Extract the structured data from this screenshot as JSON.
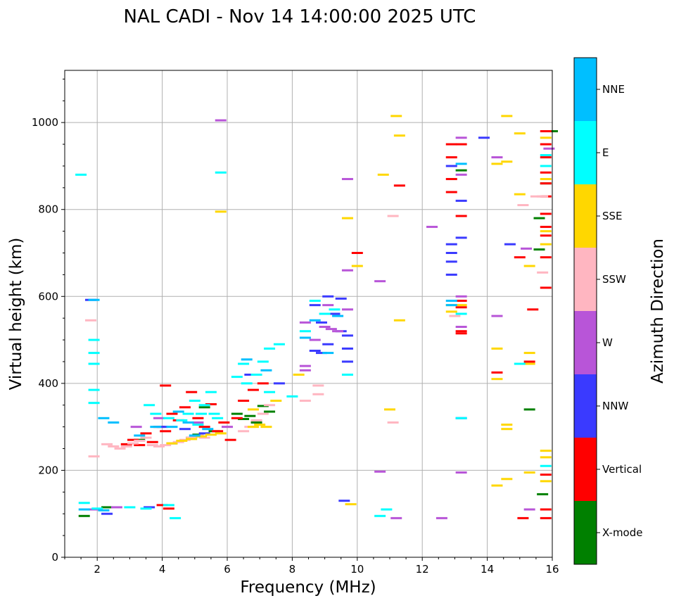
{
  "chart_data": {
    "type": "scatter",
    "title": "NAL CADI - Nov 14 14:00:00 2025 UTC",
    "xlabel": "Frequency (MHz)",
    "ylabel": "Virtual height (km)",
    "xlim": [
      1,
      16
    ],
    "ylim": [
      0,
      1120
    ],
    "x_ticks": [
      2,
      4,
      6,
      8,
      10,
      12,
      14,
      16
    ],
    "x_tick_labels": [
      "2",
      "4",
      "6",
      "8",
      "10",
      "12",
      "14",
      "16"
    ],
    "y_ticks": [
      0,
      200,
      400,
      600,
      800,
      1000
    ],
    "y_tick_labels": [
      "0",
      "200",
      "400",
      "600",
      "800",
      "1000"
    ],
    "grid": true,
    "colorbar": {
      "label": "Azimuth Direction",
      "categories": [
        "X-mode",
        "Vertical",
        "NNW",
        "W",
        "SSW",
        "SSE",
        "E",
        "NNE"
      ],
      "colors": [
        "#008000",
        "#ff0000",
        "#3a3aff",
        "#b855d8",
        "#ffb6c1",
        "#ffd700",
        "#00ffff",
        "#00bfff"
      ]
    },
    "series": [
      {
        "name": "X-mode",
        "points": [
          [
            1.6,
            95
          ],
          [
            2.3,
            115
          ],
          [
            5.1,
            282
          ],
          [
            5.6,
            290
          ],
          [
            6.5,
            318
          ],
          [
            6.7,
            325
          ],
          [
            6.9,
            310
          ],
          [
            7.1,
            348
          ],
          [
            7.3,
            335
          ],
          [
            4.3,
            262
          ],
          [
            4.9,
            275
          ],
          [
            3.3,
            270
          ],
          [
            15.6,
            708
          ],
          [
            15.3,
            340
          ],
          [
            15.7,
            145
          ],
          [
            16.0,
            980
          ],
          [
            15.8,
            860
          ],
          [
            15.6,
            780
          ],
          [
            13.2,
            890
          ],
          [
            5.3,
            345
          ],
          [
            6.3,
            330
          ]
        ]
      },
      {
        "name": "Vertical",
        "points": [
          [
            2.9,
            260
          ],
          [
            3.1,
            270
          ],
          [
            3.3,
            258
          ],
          [
            3.5,
            285
          ],
          [
            3.7,
            265
          ],
          [
            3.9,
            300
          ],
          [
            4.1,
            290
          ],
          [
            4.1,
            395
          ],
          [
            4.3,
            330
          ],
          [
            4.5,
            315
          ],
          [
            4.7,
            345
          ],
          [
            4.9,
            380
          ],
          [
            5.1,
            320
          ],
          [
            5.3,
            300
          ],
          [
            5.5,
            352
          ],
          [
            5.7,
            290
          ],
          [
            5.9,
            310
          ],
          [
            6.1,
            270
          ],
          [
            6.3,
            320
          ],
          [
            6.5,
            360
          ],
          [
            6.8,
            385
          ],
          [
            7.1,
            400
          ],
          [
            4.0,
            120
          ],
          [
            4.2,
            112
          ],
          [
            12.9,
            950
          ],
          [
            12.9,
            920
          ],
          [
            12.9,
            870
          ],
          [
            12.9,
            840
          ],
          [
            13.2,
            950
          ],
          [
            13.2,
            785
          ],
          [
            13.2,
            590
          ],
          [
            13.2,
            575
          ],
          [
            13.2,
            520
          ],
          [
            13.2,
            515
          ],
          [
            11.3,
            855
          ],
          [
            10.0,
            700
          ],
          [
            15.0,
            690
          ],
          [
            15.4,
            570
          ],
          [
            15.3,
            450
          ],
          [
            15.8,
            980
          ],
          [
            15.8,
            950
          ],
          [
            15.8,
            920
          ],
          [
            15.8,
            885
          ],
          [
            15.8,
            860
          ],
          [
            15.8,
            830
          ],
          [
            15.8,
            790
          ],
          [
            15.8,
            760
          ],
          [
            15.8,
            740
          ],
          [
            15.8,
            690
          ],
          [
            15.8,
            620
          ],
          [
            15.8,
            190
          ],
          [
            15.8,
            110
          ],
          [
            15.8,
            90
          ],
          [
            15.1,
            90
          ],
          [
            14.3,
            425
          ]
        ]
      },
      {
        "name": "NNW",
        "points": [
          [
            1.8,
            592
          ],
          [
            2.3,
            100
          ],
          [
            3.6,
            115
          ],
          [
            4.0,
            300
          ],
          [
            4.7,
            295
          ],
          [
            5.3,
            285
          ],
          [
            6.7,
            420
          ],
          [
            7.6,
            400
          ],
          [
            8.7,
            475
          ],
          [
            8.7,
            580
          ],
          [
            8.9,
            540
          ],
          [
            8.9,
            470
          ],
          [
            9.1,
            600
          ],
          [
            9.1,
            490
          ],
          [
            9.3,
            560
          ],
          [
            9.5,
            595
          ],
          [
            9.5,
            520
          ],
          [
            9.7,
            480
          ],
          [
            9.7,
            510
          ],
          [
            9.6,
            130
          ],
          [
            12.9,
            720
          ],
          [
            12.9,
            700
          ],
          [
            12.9,
            680
          ],
          [
            12.9,
            650
          ],
          [
            12.9,
            900
          ],
          [
            13.2,
            735
          ],
          [
            13.2,
            320
          ],
          [
            13.9,
            965
          ],
          [
            14.7,
            720
          ],
          [
            13.2,
            820
          ],
          [
            9.7,
            450
          ]
        ]
      },
      {
        "name": "W",
        "points": [
          [
            1.9,
            110
          ],
          [
            2.6,
            115
          ],
          [
            3.2,
            300
          ],
          [
            3.9,
            320
          ],
          [
            5.1,
            310
          ],
          [
            6.0,
            300
          ],
          [
            8.4,
            540
          ],
          [
            8.4,
            440
          ],
          [
            8.4,
            430
          ],
          [
            8.7,
            500
          ],
          [
            9.0,
            530
          ],
          [
            9.1,
            580
          ],
          [
            9.2,
            525
          ],
          [
            9.4,
            520
          ],
          [
            9.7,
            660
          ],
          [
            9.7,
            570
          ],
          [
            10.7,
            635
          ],
          [
            11.2,
            90
          ],
          [
            12.3,
            760
          ],
          [
            12.6,
            90
          ],
          [
            13.2,
            965
          ],
          [
            13.2,
            600
          ],
          [
            13.2,
            530
          ],
          [
            13.2,
            195
          ],
          [
            13.2,
            880
          ],
          [
            14.3,
            920
          ],
          [
            14.3,
            555
          ],
          [
            15.2,
            710
          ],
          [
            15.3,
            110
          ],
          [
            15.9,
            940
          ],
          [
            9.7,
            870
          ],
          [
            10.7,
            197
          ],
          [
            5.8,
            1005
          ]
        ]
      },
      {
        "name": "SSW",
        "points": [
          [
            2.3,
            260
          ],
          [
            2.5,
            255
          ],
          [
            2.7,
            250
          ],
          [
            2.9,
            255
          ],
          [
            3.1,
            262
          ],
          [
            3.3,
            268
          ],
          [
            3.5,
            275
          ],
          [
            3.7,
            258
          ],
          [
            3.9,
            255
          ],
          [
            4.1,
            258
          ],
          [
            4.3,
            262
          ],
          [
            4.5,
            265
          ],
          [
            4.7,
            270
          ],
          [
            4.9,
            275
          ],
          [
            5.1,
            280
          ],
          [
            5.3,
            275
          ],
          [
            6.5,
            290
          ],
          [
            6.7,
            300
          ],
          [
            6.9,
            315
          ],
          [
            7.1,
            330
          ],
          [
            7.3,
            350
          ],
          [
            8.4,
            360
          ],
          [
            8.8,
            395
          ],
          [
            8.8,
            375
          ],
          [
            11.1,
            785
          ],
          [
            11.1,
            310
          ],
          [
            15.1,
            810
          ],
          [
            15.5,
            830
          ],
          [
            15.7,
            655
          ],
          [
            15.7,
            830
          ],
          [
            13.0,
            555
          ],
          [
            1.8,
            545
          ],
          [
            1.9,
            232
          ]
        ]
      },
      {
        "name": "SSE",
        "points": [
          [
            4.3,
            262
          ],
          [
            4.6,
            268
          ],
          [
            4.9,
            272
          ],
          [
            5.2,
            278
          ],
          [
            5.5,
            282
          ],
          [
            5.8,
            285
          ],
          [
            6.8,
            300
          ],
          [
            7.0,
            305
          ],
          [
            7.2,
            300
          ],
          [
            7.5,
            360
          ],
          [
            6.8,
            340
          ],
          [
            8.2,
            420
          ],
          [
            9.7,
            780
          ],
          [
            9.8,
            122
          ],
          [
            10.0,
            670
          ],
          [
            10.8,
            880
          ],
          [
            11.0,
            340
          ],
          [
            11.2,
            1015
          ],
          [
            11.3,
            970
          ],
          [
            11.3,
            545
          ],
          [
            12.9,
            565
          ],
          [
            12.9,
            580
          ],
          [
            13.2,
            580
          ],
          [
            14.3,
            905
          ],
          [
            14.3,
            480
          ],
          [
            14.3,
            410
          ],
          [
            14.3,
            165
          ],
          [
            14.6,
            1015
          ],
          [
            14.6,
            910
          ],
          [
            14.6,
            305
          ],
          [
            14.6,
            295
          ],
          [
            14.6,
            180
          ],
          [
            15.0,
            975
          ],
          [
            15.0,
            835
          ],
          [
            15.3,
            670
          ],
          [
            15.3,
            470
          ],
          [
            15.3,
            445
          ],
          [
            15.3,
            195
          ],
          [
            15.8,
            965
          ],
          [
            15.8,
            870
          ],
          [
            15.8,
            750
          ],
          [
            15.8,
            720
          ],
          [
            15.8,
            245
          ],
          [
            15.8,
            230
          ],
          [
            15.8,
            175
          ],
          [
            5.8,
            795
          ]
        ]
      },
      {
        "name": "E",
        "points": [
          [
            1.5,
            880
          ],
          [
            1.6,
            125
          ],
          [
            1.9,
            500
          ],
          [
            1.9,
            470
          ],
          [
            1.9,
            445
          ],
          [
            1.9,
            355
          ],
          [
            1.9,
            385
          ],
          [
            2.0,
            112
          ],
          [
            3.0,
            115
          ],
          [
            3.5,
            112
          ],
          [
            3.6,
            350
          ],
          [
            3.8,
            330
          ],
          [
            4.2,
            120
          ],
          [
            4.2,
            320
          ],
          [
            4.6,
            315
          ],
          [
            4.8,
            330
          ],
          [
            5.0,
            360
          ],
          [
            5.1,
            305
          ],
          [
            5.2,
            330
          ],
          [
            5.3,
            350
          ],
          [
            5.5,
            380
          ],
          [
            5.6,
            330
          ],
          [
            5.7,
            320
          ],
          [
            5.8,
            885
          ],
          [
            6.3,
            415
          ],
          [
            6.5,
            445
          ],
          [
            6.6,
            400
          ],
          [
            6.9,
            420
          ],
          [
            7.1,
            450
          ],
          [
            7.3,
            380
          ],
          [
            7.3,
            480
          ],
          [
            7.6,
            490
          ],
          [
            8.0,
            370
          ],
          [
            8.4,
            520
          ],
          [
            8.7,
            590
          ],
          [
            9.0,
            560
          ],
          [
            9.3,
            570
          ],
          [
            9.7,
            420
          ],
          [
            10.7,
            95
          ],
          [
            10.9,
            110
          ],
          [
            13.2,
            560
          ],
          [
            13.2,
            320
          ],
          [
            15.0,
            445
          ],
          [
            15.8,
            925
          ],
          [
            15.8,
            900
          ],
          [
            15.8,
            210
          ],
          [
            4.4,
            90
          ]
        ]
      },
      {
        "name": "NNE",
        "points": [
          [
            1.9,
            592
          ],
          [
            2.2,
            320
          ],
          [
            2.5,
            310
          ],
          [
            3.3,
            280
          ],
          [
            3.8,
            300
          ],
          [
            4.3,
            300
          ],
          [
            4.5,
            335
          ],
          [
            4.8,
            310
          ],
          [
            5.0,
            280
          ],
          [
            5.4,
            295
          ],
          [
            6.6,
            455
          ],
          [
            7.2,
            430
          ],
          [
            8.4,
            505
          ],
          [
            8.7,
            545
          ],
          [
            9.1,
            470
          ],
          [
            9.4,
            555
          ],
          [
            12.9,
            580
          ],
          [
            12.9,
            590
          ],
          [
            13.2,
            905
          ],
          [
            1.6,
            110
          ],
          [
            2.2,
            108
          ]
        ]
      }
    ]
  }
}
